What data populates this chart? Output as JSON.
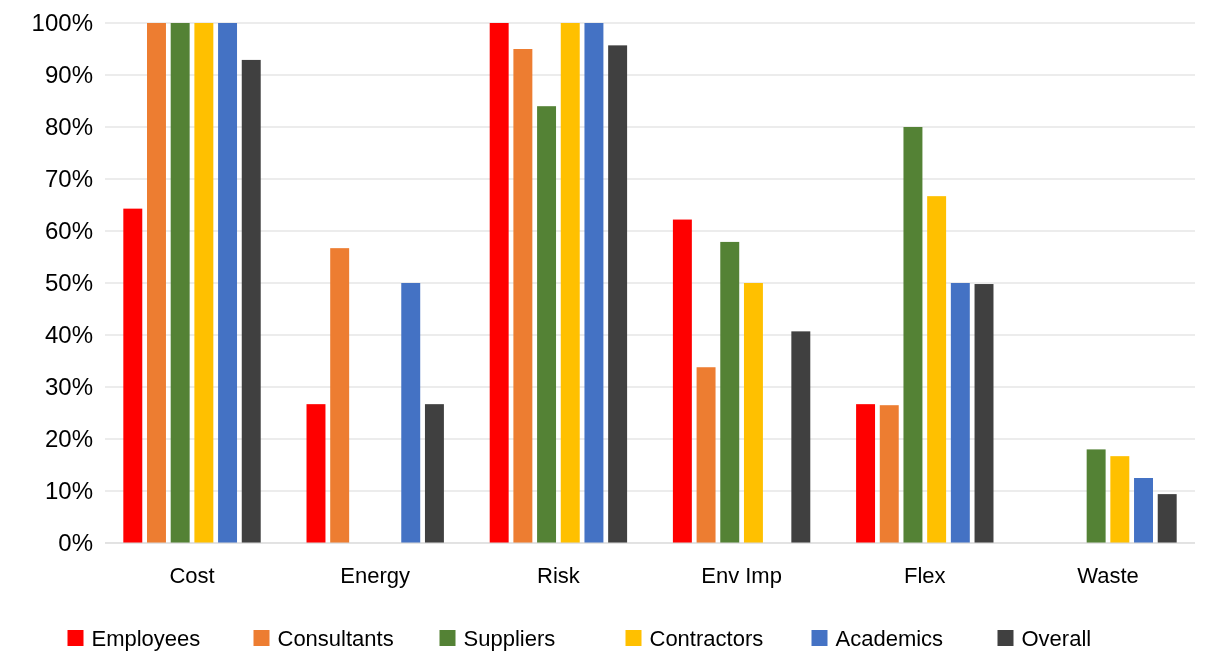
{
  "chart_data": {
    "type": "bar",
    "categories": [
      "Cost",
      "Energy",
      "Risk",
      "Env Imp",
      "Flex",
      "Waste"
    ],
    "series": [
      {
        "name": "Employees",
        "color": "#ff0000",
        "values": [
          64.3,
          26.7,
          100,
          62.2,
          26.7,
          0
        ]
      },
      {
        "name": "Consultants",
        "color": "#ed7d31",
        "values": [
          100,
          56.7,
          95,
          33.8,
          26.5,
          0
        ]
      },
      {
        "name": "Suppliers",
        "color": "#548235",
        "values": [
          100,
          0,
          84,
          57.9,
          80,
          18
        ]
      },
      {
        "name": "Contractors",
        "color": "#ffc000",
        "values": [
          100,
          0,
          100,
          50,
          66.7,
          16.7
        ]
      },
      {
        "name": "Academics",
        "color": "#4472c4",
        "values": [
          100,
          50,
          100,
          0,
          50,
          12.5
        ]
      },
      {
        "name": "Overall",
        "color": "#404040",
        "values": [
          92.9,
          26.7,
          95.7,
          40.7,
          49.8,
          9.4
        ]
      }
    ],
    "ylim": [
      0,
      100
    ],
    "yticks": [
      {
        "value": 0,
        "label": "0%"
      },
      {
        "value": 10,
        "label": "10%"
      },
      {
        "value": 20,
        "label": "20%"
      },
      {
        "value": 30,
        "label": "30%"
      },
      {
        "value": 40,
        "label": "40%"
      },
      {
        "value": 50,
        "label": "50%"
      },
      {
        "value": 60,
        "label": "60%"
      },
      {
        "value": 70,
        "label": "70%"
      },
      {
        "value": 80,
        "label": "80%"
      },
      {
        "value": 90,
        "label": "90%"
      },
      {
        "value": 100,
        "label": "100%"
      }
    ],
    "grid": "y",
    "legend": "bottom"
  }
}
